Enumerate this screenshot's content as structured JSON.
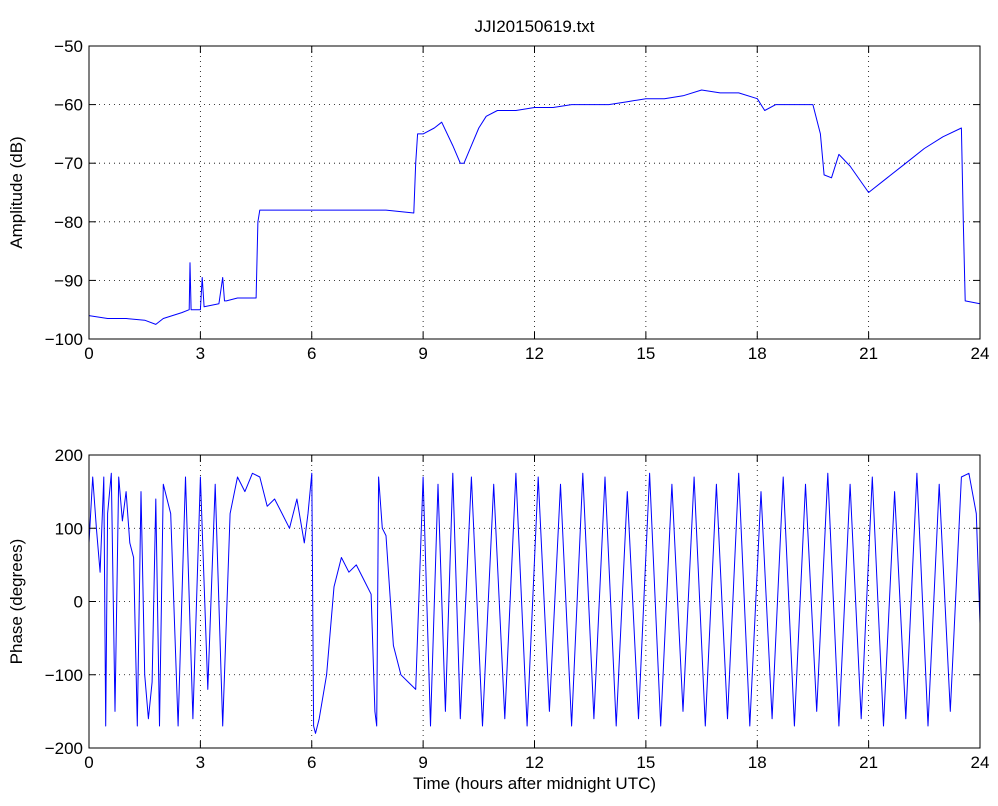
{
  "chart_data": [
    {
      "type": "line",
      "title": "JJI20150619.txt",
      "xlabel": "",
      "ylabel": "Amplitude (dB)",
      "xlim": [
        0,
        24
      ],
      "ylim": [
        -100,
        -50
      ],
      "xticks": [
        0,
        3,
        6,
        9,
        12,
        15,
        18,
        21,
        24
      ],
      "yticks": [
        -100,
        -90,
        -80,
        -70,
        -60,
        -50
      ],
      "grid": true,
      "color": "#0000ff",
      "series": [
        {
          "x": [
            0,
            0.5,
            1.0,
            1.5,
            1.8,
            2.0,
            2.5,
            2.7,
            2.72,
            2.75,
            3.0,
            3.05,
            3.1,
            3.5,
            3.6,
            3.65,
            3.7,
            4.0,
            4.5,
            4.55,
            4.6,
            5.0,
            6.0,
            7.0,
            8.0,
            8.75,
            8.8,
            8.85,
            9.0,
            9.3,
            9.5,
            9.8,
            10.0,
            10.1,
            10.3,
            10.5,
            10.7,
            11.0,
            11.5,
            12.0,
            12.5,
            13.0,
            13.5,
            14.0,
            14.5,
            15.0,
            15.5,
            16.0,
            16.5,
            17.0,
            17.5,
            18.0,
            18.2,
            18.5,
            19.0,
            19.5,
            19.7,
            19.8,
            20.0,
            20.2,
            20.5,
            21.0,
            21.5,
            22.0,
            22.5,
            23.0,
            23.5,
            23.55,
            23.6,
            24.0
          ],
          "y": [
            -96,
            -96.5,
            -96.5,
            -96.8,
            -97.5,
            -96.5,
            -95.5,
            -95,
            -87,
            -95,
            -95,
            -89.5,
            -94.5,
            -94,
            -89.5,
            -93.5,
            -93.5,
            -93,
            -93,
            -80,
            -78,
            -78,
            -78,
            -78,
            -78,
            -78.5,
            -70,
            -65,
            -65,
            -64,
            -63,
            -67,
            -70,
            -70,
            -67,
            -64,
            -62,
            -61,
            -61,
            -60.5,
            -60.5,
            -60,
            -60,
            -60,
            -59.5,
            -59,
            -59,
            -58.5,
            -57.5,
            -58,
            -58,
            -59,
            -61,
            -60,
            -60,
            -60,
            -65,
            -72,
            -72.5,
            -68.5,
            -70.5,
            -75,
            -72.5,
            -70,
            -67.5,
            -65.5,
            -64,
            -80,
            -93.5,
            -94
          ]
        }
      ]
    },
    {
      "type": "line",
      "title": "",
      "xlabel": "Time (hours after midnight UTC)",
      "ylabel": "Phase (degrees)",
      "xlim": [
        0,
        24
      ],
      "ylim": [
        -200,
        200
      ],
      "xticks": [
        0,
        3,
        6,
        9,
        12,
        15,
        18,
        21,
        24
      ],
      "yticks": [
        -200,
        -100,
        0,
        100,
        200
      ],
      "grid": true,
      "color": "#0000ff",
      "series": [
        {
          "x": [
            0,
            0.1,
            0.2,
            0.3,
            0.4,
            0.45,
            0.5,
            0.6,
            0.7,
            0.8,
            0.9,
            1.0,
            1.1,
            1.2,
            1.3,
            1.4,
            1.5,
            1.6,
            1.7,
            1.8,
            1.9,
            2.0,
            2.2,
            2.4,
            2.6,
            2.8,
            3.0,
            3.2,
            3.4,
            3.6,
            3.8,
            4.0,
            4.2,
            4.4,
            4.6,
            4.8,
            5.0,
            5.2,
            5.4,
            5.6,
            5.8,
            5.9,
            6.0,
            6.05,
            6.1,
            6.2,
            6.4,
            6.6,
            6.8,
            7.0,
            7.2,
            7.4,
            7.6,
            7.7,
            7.75,
            7.8,
            7.9,
            8.0,
            8.2,
            8.4,
            8.6,
            8.8,
            9.0,
            9.2,
            9.4,
            9.6,
            9.8,
            10.0,
            10.3,
            10.6,
            10.9,
            11.2,
            11.5,
            11.8,
            12.1,
            12.4,
            12.7,
            13.0,
            13.3,
            13.6,
            13.9,
            14.2,
            14.5,
            14.8,
            15.1,
            15.4,
            15.7,
            16.0,
            16.3,
            16.6,
            16.9,
            17.2,
            17.5,
            17.8,
            18.1,
            18.4,
            18.7,
            19.0,
            19.3,
            19.6,
            19.9,
            20.2,
            20.5,
            20.8,
            21.1,
            21.4,
            21.7,
            22.0,
            22.3,
            22.6,
            22.9,
            23.2,
            23.5,
            23.7,
            23.9,
            24.0
          ],
          "y": [
            80,
            170,
            100,
            40,
            170,
            -170,
            120,
            175,
            -150,
            170,
            110,
            150,
            80,
            60,
            -170,
            150,
            -100,
            -160,
            -110,
            140,
            -170,
            160,
            120,
            -170,
            170,
            -160,
            170,
            -120,
            160,
            -170,
            120,
            170,
            150,
            175,
            170,
            130,
            140,
            120,
            100,
            140,
            80,
            120,
            175,
            -170,
            -180,
            -160,
            -100,
            20,
            60,
            40,
            50,
            30,
            10,
            -150,
            -170,
            170,
            100,
            90,
            -60,
            -100,
            -110,
            -120,
            170,
            -170,
            160,
            -150,
            175,
            -160,
            170,
            -170,
            160,
            -160,
            175,
            -170,
            170,
            -150,
            160,
            -170,
            175,
            -160,
            170,
            -170,
            150,
            -160,
            175,
            -170,
            160,
            -150,
            170,
            -170,
            160,
            -160,
            175,
            -170,
            150,
            -160,
            170,
            -170,
            160,
            -150,
            175,
            -170,
            160,
            -160,
            170,
            -170,
            150,
            -160,
            175,
            -170,
            160,
            -150,
            170,
            175,
            120,
            -30
          ]
        }
      ]
    }
  ]
}
